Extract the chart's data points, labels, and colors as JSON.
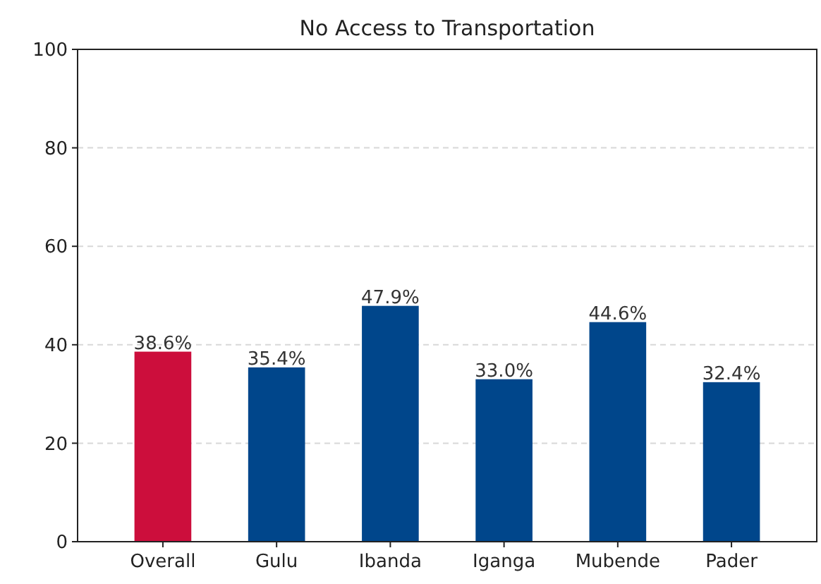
{
  "chart_data": {
    "type": "bar",
    "title": "No Access to Transportation",
    "categories": [
      "Overall",
      "Gulu",
      "Ibanda",
      "Iganga",
      "Mubende",
      "Pader"
    ],
    "values": [
      38.6,
      35.4,
      47.9,
      33.0,
      44.6,
      32.4
    ],
    "colors": [
      "#cc0e3c",
      "#00468b",
      "#00468b",
      "#00468b",
      "#00468b",
      "#00468b"
    ],
    "value_labels": [
      "38.6%",
      "35.4%",
      "47.9%",
      "33.0%",
      "44.6%",
      "32.4%"
    ],
    "ylim": [
      0,
      100
    ],
    "yticks": [
      0,
      20,
      40,
      60,
      80,
      100
    ],
    "grid": "y"
  }
}
